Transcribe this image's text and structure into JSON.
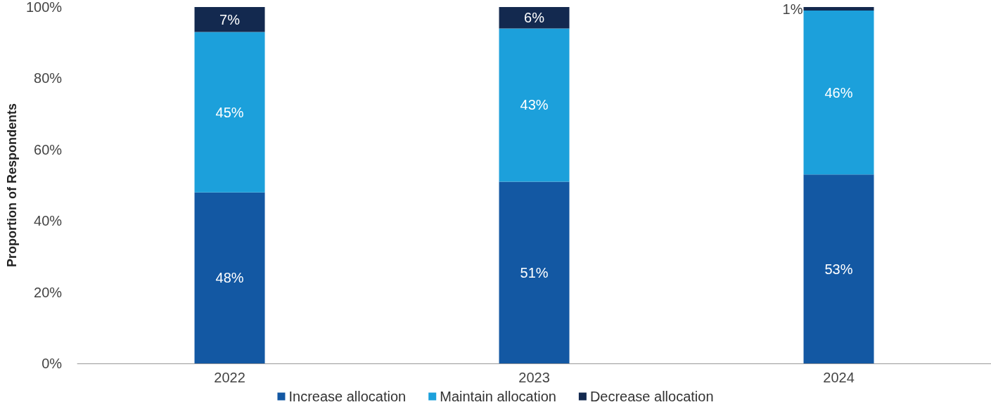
{
  "chart_data": {
    "type": "bar",
    "stacked": true,
    "ylabel": "Proportion of Respondents",
    "categories": [
      "2022",
      "2023",
      "2024"
    ],
    "series": [
      {
        "name": "Increase allocation",
        "color": "#1358a3",
        "values": [
          48,
          51,
          53
        ],
        "value_labels": [
          "48%",
          "51%",
          "53%"
        ]
      },
      {
        "name": "Maintain allocation",
        "color": "#1ca0db",
        "values": [
          45,
          43,
          46
        ],
        "value_labels": [
          "45%",
          "43%",
          "46%"
        ]
      },
      {
        "name": "Decrease allocation",
        "color": "#13294f",
        "values": [
          7,
          6,
          1
        ],
        "value_labels": [
          "7%",
          "6%",
          "1%"
        ]
      }
    ],
    "ylim": [
      0,
      100
    ],
    "yticks": [
      {
        "value": 0,
        "label": "0%"
      },
      {
        "value": 20,
        "label": "20%"
      },
      {
        "value": 40,
        "label": "40%"
      },
      {
        "value": 60,
        "label": "60%"
      },
      {
        "value": 80,
        "label": "80%"
      },
      {
        "value": 100,
        "label": "100%"
      }
    ],
    "grid": false,
    "legend": "bottom"
  }
}
